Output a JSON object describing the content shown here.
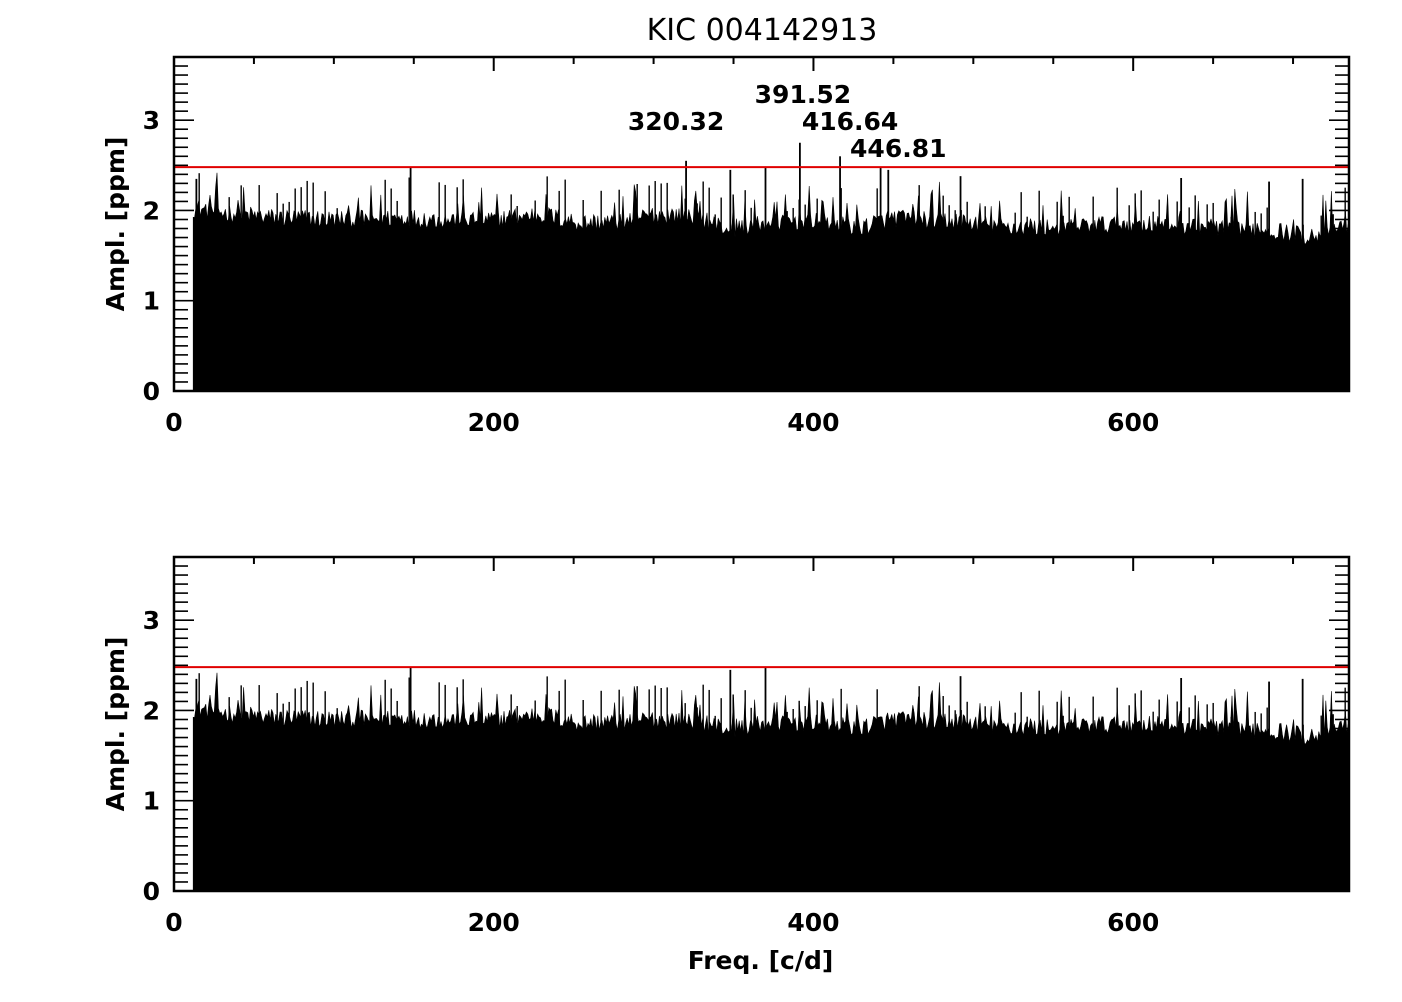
{
  "title": "KIC 004142913",
  "chart_data": [
    {
      "type": "bar",
      "panel": "top",
      "xlabel": "",
      "ylabel": "Ampl. [ppm]",
      "xlim": [
        0,
        735
      ],
      "ylim": [
        0,
        3.7
      ],
      "xticks": [
        0,
        200,
        400,
        600
      ],
      "yticks": [
        0,
        1,
        2,
        3
      ],
      "threshold": 2.48,
      "threshold_color": "#e00000",
      "noise_level": [
        [
          12,
          2.03
        ],
        [
          30,
          1.98
        ],
        [
          60,
          1.92
        ],
        [
          100,
          1.9
        ],
        [
          140,
          1.92
        ],
        [
          170,
          1.9
        ],
        [
          200,
          1.9
        ],
        [
          230,
          1.96
        ],
        [
          255,
          1.86
        ],
        [
          280,
          1.88
        ],
        [
          300,
          1.95
        ],
        [
          325,
          1.95
        ],
        [
          345,
          1.8
        ],
        [
          370,
          1.86
        ],
        [
          400,
          1.9
        ],
        [
          430,
          1.82
        ],
        [
          450,
          1.92
        ],
        [
          490,
          1.88
        ],
        [
          520,
          1.82
        ],
        [
          560,
          1.82
        ],
        [
          600,
          1.86
        ],
        [
          640,
          1.83
        ],
        [
          680,
          1.8
        ],
        [
          710,
          1.72
        ],
        [
          735,
          1.85
        ]
      ],
      "peaks": [
        {
          "x": 320.32,
          "y": 2.55
        },
        {
          "x": 348,
          "y": 2.45
        },
        {
          "x": 370,
          "y": 2.47
        },
        {
          "x": 391.52,
          "y": 2.75
        },
        {
          "x": 416.64,
          "y": 2.6
        },
        {
          "x": 442,
          "y": 2.47
        },
        {
          "x": 446.81,
          "y": 2.45
        },
        {
          "x": 148,
          "y": 2.48
        },
        {
          "x": 14,
          "y": 2.35
        },
        {
          "x": 492,
          "y": 2.38
        },
        {
          "x": 630,
          "y": 2.36
        },
        {
          "x": 685,
          "y": 2.32
        },
        {
          "x": 706,
          "y": 2.35
        }
      ],
      "annotations": [
        {
          "text": "391.52",
          "x": 391.52
        },
        {
          "text": "320.32",
          "x": 320.32
        },
        {
          "text": "416.64",
          "x": 416.64
        },
        {
          "text": "446.81",
          "x": 446.81
        }
      ]
    },
    {
      "type": "bar",
      "panel": "bottom",
      "xlabel": "Freq. [c/d]",
      "ylabel": "Ampl. [ppm]",
      "xlim": [
        0,
        735
      ],
      "ylim": [
        0,
        3.7
      ],
      "xticks": [
        0,
        200,
        400,
        600
      ],
      "yticks": [
        0,
        1,
        2,
        3
      ],
      "threshold": 2.48,
      "threshold_color": "#e00000",
      "noise_level": [
        [
          12,
          2.03
        ],
        [
          30,
          1.98
        ],
        [
          60,
          1.92
        ],
        [
          100,
          1.9
        ],
        [
          140,
          1.92
        ],
        [
          170,
          1.9
        ],
        [
          200,
          1.9
        ],
        [
          230,
          1.96
        ],
        [
          255,
          1.86
        ],
        [
          280,
          1.88
        ],
        [
          300,
          1.9
        ],
        [
          325,
          1.9
        ],
        [
          345,
          1.8
        ],
        [
          370,
          1.86
        ],
        [
          400,
          1.88
        ],
        [
          430,
          1.82
        ],
        [
          450,
          1.9
        ],
        [
          490,
          1.88
        ],
        [
          520,
          1.82
        ],
        [
          560,
          1.82
        ],
        [
          600,
          1.86
        ],
        [
          640,
          1.83
        ],
        [
          680,
          1.8
        ],
        [
          710,
          1.72
        ],
        [
          735,
          1.85
        ]
      ],
      "peaks": [
        {
          "x": 348,
          "y": 2.45
        },
        {
          "x": 370,
          "y": 2.47
        },
        {
          "x": 148,
          "y": 2.48
        },
        {
          "x": 14,
          "y": 2.35
        },
        {
          "x": 492,
          "y": 2.38
        },
        {
          "x": 630,
          "y": 2.36
        },
        {
          "x": 685,
          "y": 2.32
        },
        {
          "x": 706,
          "y": 2.35
        }
      ],
      "annotations": []
    }
  ]
}
